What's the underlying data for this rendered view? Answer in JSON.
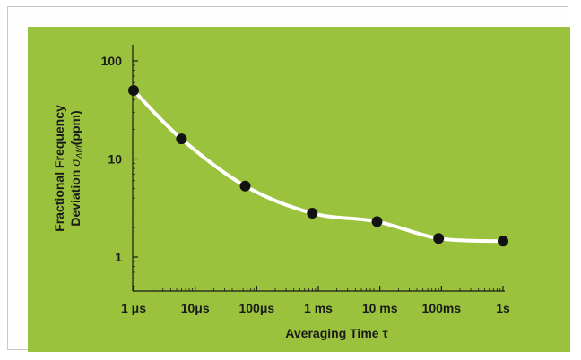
{
  "chart_data": {
    "type": "line",
    "title": "",
    "xlabel": "Averaging Time τ",
    "ylabel_line1": "Fractional Frequency",
    "ylabel_line2_prefix": "Deviation ",
    "ylabel_sigma": "σ",
    "ylabel_subscript": "Δf/f",
    "ylabel_unit": "(ppm)",
    "x_scale": "log",
    "y_scale": "log",
    "xlim": [
      1e-06,
      1
    ],
    "ylim": [
      0.35,
      150
    ],
    "x_tick_values": [
      1e-06,
      1e-05,
      0.0001,
      0.001,
      0.01,
      0.1,
      1
    ],
    "x_tick_labels": [
      "1 μs",
      "10μs",
      "100μs",
      "1 ms",
      "10 ms",
      "100ms",
      "1s"
    ],
    "y_tick_values": [
      1,
      10,
      100
    ],
    "y_tick_labels": [
      "1",
      "10",
      "100"
    ],
    "grid": false,
    "legend": "none",
    "series": [
      {
        "x": [
          1e-06,
          6e-06,
          6.5e-05,
          0.0008,
          0.009,
          0.09,
          1
        ],
        "y": [
          50,
          16,
          5.3,
          2.8,
          2.3,
          1.55,
          1.45
        ],
        "markers": true,
        "smooth": true
      }
    ],
    "colors": {
      "panel_background": "#9bc23c",
      "curve": "#ffffff",
      "marker": "#121212",
      "axis": "#1a1a1a",
      "frame_border": "#c9c9c9"
    }
  }
}
